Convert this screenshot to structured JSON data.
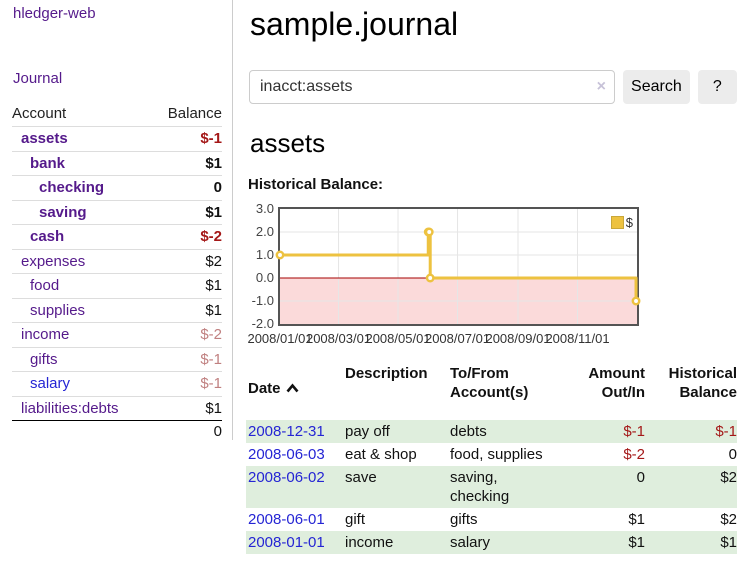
{
  "brand": "hledger-web",
  "nav": {
    "journal": "Journal"
  },
  "sidebar": {
    "headers": {
      "account": "Account",
      "balance": "Balance"
    },
    "rows": [
      {
        "account": "assets",
        "balance": "$-1"
      },
      {
        "account": "bank",
        "balance": "$1"
      },
      {
        "account": "checking",
        "balance": "0"
      },
      {
        "account": "saving",
        "balance": "$1"
      },
      {
        "account": "cash",
        "balance": "$-2"
      },
      {
        "account": "expenses",
        "balance": "$2"
      },
      {
        "account": "food",
        "balance": "$1"
      },
      {
        "account": "supplies",
        "balance": "$1"
      },
      {
        "account": "income",
        "balance": "$-2"
      },
      {
        "account": "gifts",
        "balance": "$-1"
      },
      {
        "account": "salary",
        "balance": "$-1"
      },
      {
        "account": "liabilities:debts",
        "balance": "$1"
      }
    ],
    "total": "0"
  },
  "main": {
    "title": "sample.journal",
    "search": {
      "value": "inacct:assets",
      "clear": "×",
      "button": "Search",
      "help": "?"
    },
    "heading": "assets",
    "chart_label": "Historical Balance:"
  },
  "register": {
    "headers": {
      "date": "Date",
      "description": "Description",
      "tofrom": "To/From\nAccount(s)",
      "amount": "Amount\nOut/In",
      "balance": "Historical\nBalance"
    },
    "rows": [
      {
        "date": "2008-12-31",
        "description": "pay off",
        "accounts": "debts",
        "amount": "$-1",
        "balance": "$-1"
      },
      {
        "date": "2008-06-03",
        "description": "eat & shop",
        "accounts": "food, supplies",
        "amount": "$-2",
        "balance": "0"
      },
      {
        "date": "2008-06-02",
        "description": "save",
        "accounts": "saving,\nchecking",
        "amount": "0",
        "balance": "$2"
      },
      {
        "date": "2008-06-01",
        "description": "gift",
        "accounts": "gifts",
        "amount": "$1",
        "balance": "$2"
      },
      {
        "date": "2008-01-01",
        "description": "income",
        "accounts": "salary",
        "amount": "$1",
        "balance": "$1"
      }
    ]
  },
  "chart_data": {
    "type": "line",
    "step": true,
    "title": "Historical Balance",
    "legend": [
      {
        "label": "$",
        "color": "#edc240"
      }
    ],
    "legend_position": "top-right",
    "grid": true,
    "series": [
      {
        "name": "$",
        "color": "#edc240",
        "points": [
          [
            "2008-01-01",
            1
          ],
          [
            "2008-06-01",
            2
          ],
          [
            "2008-06-02",
            2
          ],
          [
            "2008-06-03",
            0
          ],
          [
            "2008-12-31",
            -1
          ]
        ]
      }
    ],
    "ylim": [
      -2,
      3
    ],
    "yticks": [
      {
        "v": 3,
        "label": "3.0"
      },
      {
        "v": 2,
        "label": "2.0"
      },
      {
        "v": 1,
        "label": "1.0"
      },
      {
        "v": 0,
        "label": "0.0"
      },
      {
        "v": -1,
        "label": "-1.0"
      },
      {
        "v": -2,
        "label": "-2.0"
      }
    ],
    "xticks": [
      {
        "d": "2008-01-01",
        "label": "2008/01/01"
      },
      {
        "d": "2008-03-01",
        "label": "2008/03/01"
      },
      {
        "d": "2008-05-01",
        "label": "2008/05/01"
      },
      {
        "d": "2008-07-01",
        "label": "2008/07/01"
      },
      {
        "d": "2008-09-01",
        "label": "2008/09/01"
      },
      {
        "d": "2008-11-01",
        "label": "2008/11/01"
      }
    ],
    "x_start": "2008-01-01",
    "x_end": "2009-01-01",
    "negative_region_color": "#fbdada",
    "zero_line_color": "#a40000",
    "gridline_color": "#e6e6e6"
  },
  "colors": {
    "accent_purple": "#551a8b",
    "link_blue": "#2525d4",
    "negative": "#a41818",
    "negative_muted": "#c08080",
    "row_green": "#dfeedd",
    "series_yellow": "#edc240"
  }
}
